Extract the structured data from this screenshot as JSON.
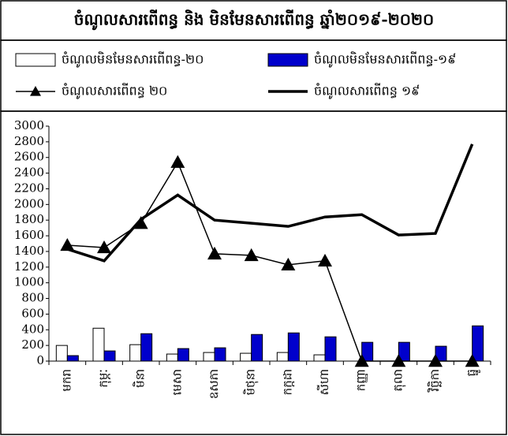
{
  "chart_data": {
    "type": "combo",
    "title": "ចំណូលសារពើពន្ធ និង មិនមែនសារពើពន្ធ ឆ្នាំ២០១៩-២០២០",
    "categories": [
      "មករា",
      "កុម្ភៈ",
      "មិនា",
      "មេសា",
      "ឧសភា",
      "មិថុនា",
      "កក្កដា",
      "សីហា",
      "កញ្ញា",
      "តុលា",
      "វិច្ឆិកា",
      "ធ្នូ"
    ],
    "series": [
      {
        "name": "ចំណូលមិនមែនសារពើពន្ធ-២០",
        "type": "bar",
        "color": "#ffffff",
        "values": [
          200,
          420,
          210,
          90,
          110,
          100,
          110,
          80,
          null,
          null,
          null,
          null
        ]
      },
      {
        "name": "ចំណូលមិនមែនសារពើពន្ធ-១៩",
        "type": "bar",
        "color": "#0000cc",
        "values": [
          70,
          130,
          350,
          160,
          170,
          340,
          360,
          310,
          240,
          240,
          190,
          450
        ]
      },
      {
        "name": "ចំណូលសារពើពន្ធ ២០",
        "type": "line",
        "marker": "triangle",
        "linewidth": 1.5,
        "color": "#000000",
        "values": [
          1480,
          1450,
          1760,
          2540,
          1370,
          1350,
          1230,
          1280,
          0,
          0,
          0,
          0
        ]
      },
      {
        "name": "ចំណូលសារពើពន្ធ ១៩",
        "type": "line",
        "linewidth": 3.5,
        "color": "#000000",
        "values": [
          1430,
          1280,
          1810,
          2120,
          1800,
          1760,
          1720,
          1840,
          1870,
          1610,
          1630,
          2770
        ]
      }
    ],
    "ylim": [
      0,
      3000
    ],
    "yticks": [
      0,
      200,
      400,
      600,
      800,
      1000,
      1200,
      1400,
      1600,
      1800,
      2000,
      2200,
      2400,
      2600,
      2800,
      3000
    ],
    "grid": false
  }
}
